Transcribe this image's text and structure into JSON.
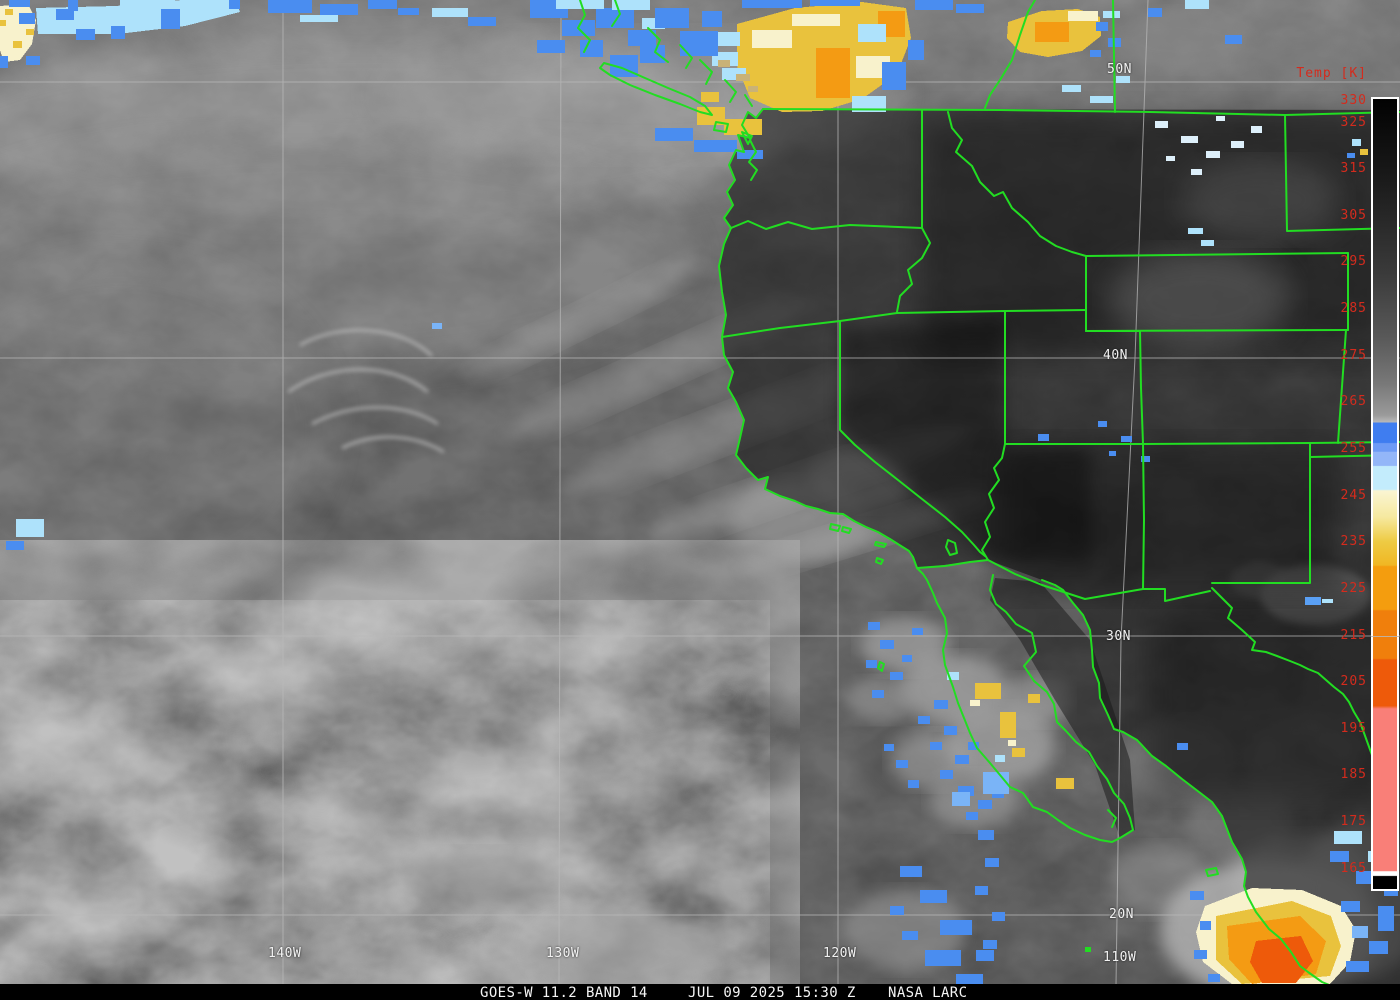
{
  "map_overlay": {
    "lat_labels": [
      "50N",
      "40N",
      "30N",
      "20N"
    ],
    "lon_labels": [
      "140W",
      "130W",
      "120W",
      "110W"
    ]
  },
  "colorbar": {
    "title": "Temp [K]",
    "ticks": [
      "330",
      "325",
      "315",
      "305",
      "295",
      "285",
      "275",
      "265",
      "255",
      "245",
      "235",
      "225",
      "215",
      "205",
      "195",
      "185",
      "175",
      "165"
    ],
    "stops": [
      {
        "p": 0,
        "c": "#020202"
      },
      {
        "p": 10,
        "c": "#1a1a1a"
      },
      {
        "p": 22,
        "c": "#3a3a3a"
      },
      {
        "p": 30,
        "c": "#585858"
      },
      {
        "p": 36,
        "c": "#787878"
      },
      {
        "p": 40,
        "c": "#9a9a9a"
      },
      {
        "p": 40.9,
        "c": "#b8b8b8"
      },
      {
        "p": 41,
        "c": "#3f7df0"
      },
      {
        "p": 43.5,
        "c": "#3f7df0"
      },
      {
        "p": 43.6,
        "c": "#6d9bf5"
      },
      {
        "p": 44.6,
        "c": "#6d9bf5"
      },
      {
        "p": 44.7,
        "c": "#93b6f8"
      },
      {
        "p": 46.4,
        "c": "#93b6f8"
      },
      {
        "p": 46.5,
        "c": "#c3ecfc"
      },
      {
        "p": 49.4,
        "c": "#c3ecfc"
      },
      {
        "p": 49.6,
        "c": "#faf5d2"
      },
      {
        "p": 52.9,
        "c": "#f6e9a0"
      },
      {
        "p": 56,
        "c": "#eecb44"
      },
      {
        "p": 59,
        "c": "#f0b723"
      },
      {
        "p": 59.2,
        "c": "#f49d0e"
      },
      {
        "p": 64.6,
        "c": "#f49d0e"
      },
      {
        "p": 64.8,
        "c": "#f07f0c"
      },
      {
        "p": 70.8,
        "c": "#f07f0c"
      },
      {
        "p": 71,
        "c": "#ee5a0a"
      },
      {
        "p": 76.8,
        "c": "#ee5a0a"
      },
      {
        "p": 77.2,
        "c": "#f97f78"
      },
      {
        "p": 97.7,
        "c": "#f97f78"
      },
      {
        "p": 97.8,
        "c": "#ffffff"
      },
      {
        "p": 98.3,
        "c": "#ffffff"
      },
      {
        "p": 98.4,
        "c": "#000000"
      },
      {
        "p": 100,
        "c": "#000000"
      }
    ]
  },
  "caption": {
    "product": "GOES-W 11.2 BAND 14",
    "timestamp": "JUL 09 2025 15:30 Z",
    "credit": "NASA LARC"
  },
  "colors": {
    "border_green": "#22dd22",
    "grid_gray": "#b9b9b9",
    "label_white": "#f2f2f2",
    "label_red": "#d42b1d",
    "caption_bg": "#000000"
  }
}
